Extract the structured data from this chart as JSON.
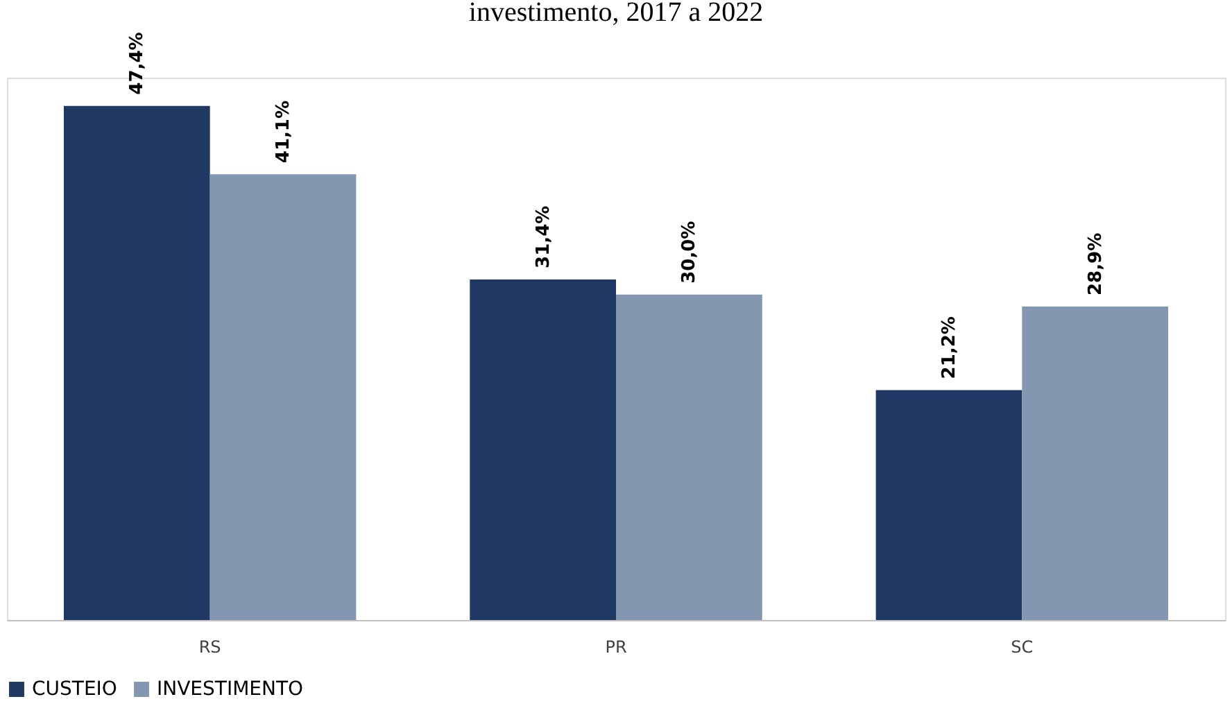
{
  "chart_data": {
    "type": "bar",
    "title": "investimento, 2017 a 2022",
    "categories": [
      "RS",
      "PR",
      "SC"
    ],
    "series": [
      {
        "name": "CUSTEIO",
        "color": "#203864",
        "values": [
          47.4,
          31.4,
          21.2
        ],
        "value_labels": [
          "47,4%",
          "31,4%",
          "21,2%"
        ]
      },
      {
        "name": "INVESTIMENTO",
        "color": "#8497b0",
        "values": [
          41.1,
          30.0,
          28.9
        ],
        "value_labels": [
          "41,1%",
          "30,0%",
          "28,9%"
        ]
      }
    ],
    "legend": "bottom",
    "grid": false
  }
}
